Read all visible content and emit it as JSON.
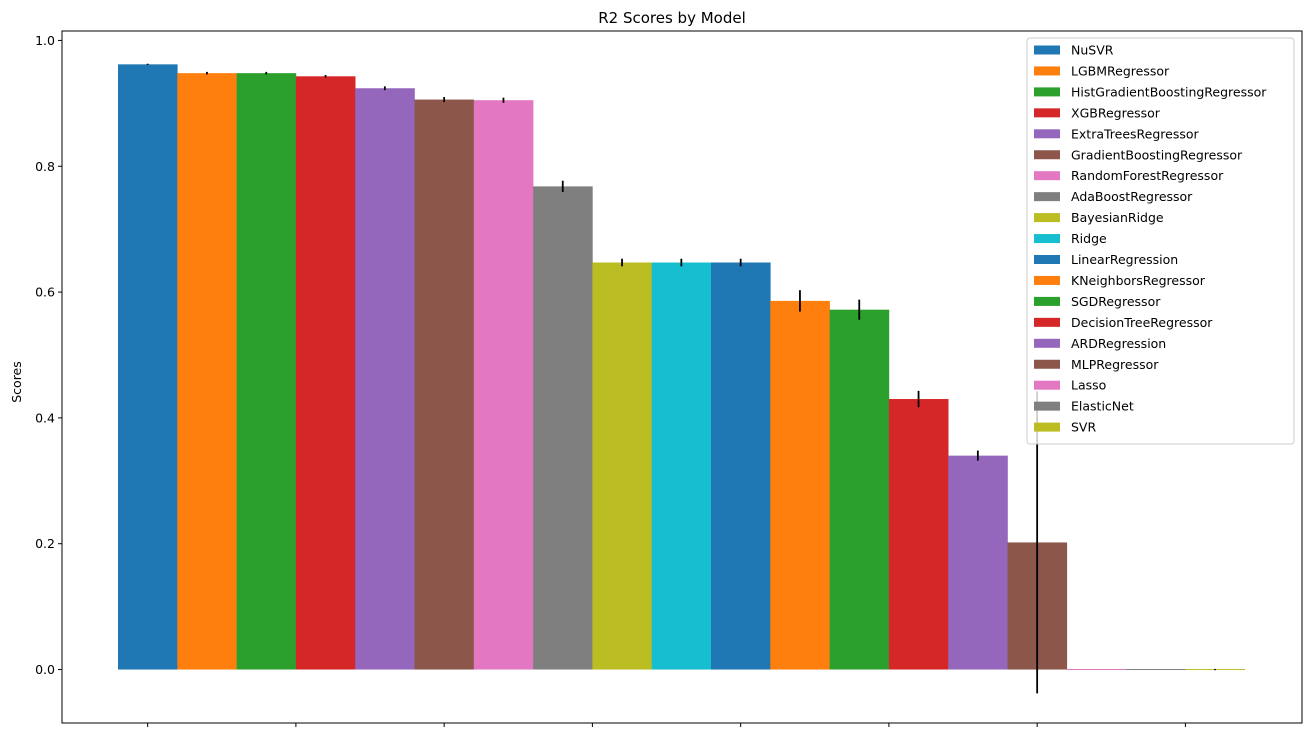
{
  "chart_data": {
    "type": "bar",
    "title": "R2 Scores by Model",
    "xlabel": "",
    "ylabel": "Scores",
    "ylim": [
      -0.085,
      1.015
    ],
    "yticks": [
      0.0,
      0.2,
      0.4,
      0.6,
      0.8,
      1.0
    ],
    "ytick_labels": [
      "0.0",
      "0.2",
      "0.4",
      "0.6",
      "0.8",
      "1.0"
    ],
    "xtick_count": 8,
    "legend_position": "top-right",
    "grid": false,
    "series": [
      {
        "name": "NuSVR",
        "value": 0.962,
        "error": 0.001,
        "color": "#1f77b4"
      },
      {
        "name": "LGBMRegressor",
        "value": 0.948,
        "error": 0.002,
        "color": "#ff7f0e"
      },
      {
        "name": "HistGradientBoostingRegressor",
        "value": 0.948,
        "error": 0.002,
        "color": "#2ca02c"
      },
      {
        "name": "XGBRegressor",
        "value": 0.943,
        "error": 0.002,
        "color": "#d62728"
      },
      {
        "name": "ExtraTreesRegressor",
        "value": 0.924,
        "error": 0.003,
        "color": "#9467bd"
      },
      {
        "name": "GradientBoostingRegressor",
        "value": 0.906,
        "error": 0.004,
        "color": "#8c564b"
      },
      {
        "name": "RandomForestRegressor",
        "value": 0.905,
        "error": 0.004,
        "color": "#e377c2"
      },
      {
        "name": "AdaBoostRegressor",
        "value": 0.768,
        "error": 0.009,
        "color": "#7f7f7f"
      },
      {
        "name": "BayesianRidge",
        "value": 0.647,
        "error": 0.006,
        "color": "#bcbd22"
      },
      {
        "name": "Ridge",
        "value": 0.647,
        "error": 0.006,
        "color": "#17becf"
      },
      {
        "name": "LinearRegression",
        "value": 0.647,
        "error": 0.006,
        "color": "#1f77b4"
      },
      {
        "name": "KNeighborsRegressor",
        "value": 0.586,
        "error": 0.017,
        "color": "#ff7f0e"
      },
      {
        "name": "SGDRegressor",
        "value": 0.572,
        "error": 0.016,
        "color": "#2ca02c"
      },
      {
        "name": "DecisionTreeRegressor",
        "value": 0.43,
        "error": 0.013,
        "color": "#d62728"
      },
      {
        "name": "ARDRegression",
        "value": 0.34,
        "error": 0.008,
        "color": "#9467bd"
      },
      {
        "name": "MLPRegressor",
        "value": 0.202,
        "error": 0.24,
        "color": "#8c564b"
      },
      {
        "name": "Lasso",
        "value": 0.0,
        "error": 0.0,
        "color": "#e377c2"
      },
      {
        "name": "ElasticNet",
        "value": 0.0,
        "error": 0.0,
        "color": "#7f7f7f"
      },
      {
        "name": "SVR",
        "value": 0.0,
        "error": 0.001,
        "color": "#bcbd22"
      }
    ]
  }
}
